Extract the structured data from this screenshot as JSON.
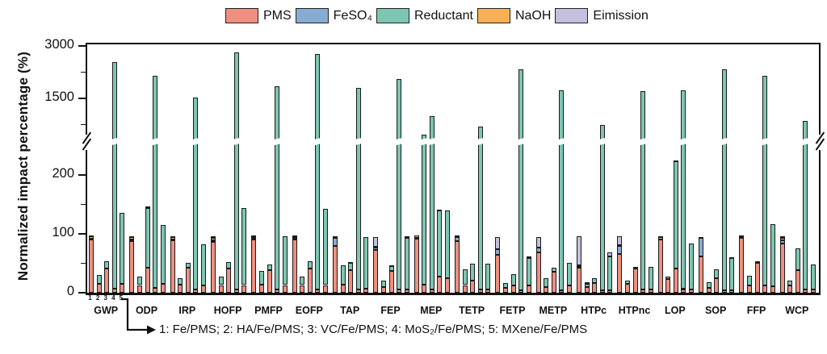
{
  "chart_data": {
    "type": "stacked-bar",
    "title": "",
    "ylabel": "Normalized impact percentage (%)",
    "legend_position": "top",
    "components": [
      "PMS",
      "FeSO₄",
      "Reductant",
      "NaOH",
      "Eimission"
    ],
    "colors": [
      "#EF8F7F",
      "#88ABD2",
      "#7DC6B2",
      "#F7B055",
      "#C3BFDD"
    ],
    "bar_numbering": [
      "1",
      "2",
      "3",
      "4",
      "5"
    ],
    "annotation": "1: Fe/PMS; 2: HA/Fe/PMS; 3: VC/Fe/PMS; 4: MoS₂/Fe/PMS; 5: MXene/Fe/PMS",
    "yticks_major": [
      0,
      100,
      200,
      1500,
      3000
    ],
    "yticks_minor": [
      50,
      150,
      750,
      2250
    ],
    "axis_break_between": [
      250,
      1500
    ],
    "ylim": [
      0,
      3000
    ],
    "grid": false,
    "categories": [
      "GWP",
      "ODP",
      "IRP",
      "HOFP",
      "PMFP",
      "EOFP",
      "TAP",
      "FEP",
      "MEP",
      "TETP",
      "FETP",
      "METP",
      "HTPc",
      "HTPnc",
      "LOP",
      "SOP",
      "FFP",
      "WCP"
    ],
    "series_order_note": "each bar = [PMS, FeSO4, Reductant, NaOH, Eimission] in %",
    "groups": [
      {
        "label": "GWP",
        "bars": [
          [
            90,
            2,
            0,
            4,
            1
          ],
          [
            15,
            0,
            15,
            0,
            0
          ],
          [
            41,
            0,
            13,
            0,
            0
          ],
          [
            7,
            0,
            2543,
            0,
            0
          ],
          [
            15,
            0,
            120,
            0,
            0
          ]
        ]
      },
      {
        "label": "ODP",
        "bars": [
          [
            88,
            2,
            0,
            4,
            2
          ],
          [
            13,
            0,
            14,
            0,
            0
          ],
          [
            42,
            0,
            102,
            3,
            0
          ],
          [
            8,
            0,
            2142,
            0,
            0
          ],
          [
            15,
            0,
            100,
            0,
            0
          ]
        ]
      },
      {
        "label": "IRP",
        "bars": [
          [
            90,
            1,
            0,
            4,
            1
          ],
          [
            14,
            0,
            10,
            0,
            0
          ],
          [
            42,
            0,
            9,
            0,
            0
          ],
          [
            5,
            0,
            1515,
            0,
            0
          ],
          [
            12,
            0,
            70,
            0,
            0
          ]
        ]
      },
      {
        "label": "HOFP",
        "bars": [
          [
            86,
            3,
            0,
            4,
            3
          ],
          [
            13,
            0,
            14,
            0,
            0
          ],
          [
            41,
            0,
            11,
            0,
            0
          ],
          [
            5,
            0,
            2815,
            0,
            0
          ],
          [
            13,
            0,
            131,
            0,
            0
          ]
        ]
      },
      {
        "label": "PMFP",
        "bars": [
          [
            90,
            3,
            0,
            3,
            1
          ],
          [
            14,
            0,
            23,
            0,
            0
          ],
          [
            38,
            0,
            10,
            0,
            0
          ],
          [
            6,
            0,
            1844,
            0,
            0
          ],
          [
            13,
            0,
            83,
            0,
            0
          ]
        ]
      },
      {
        "label": "EOFP",
        "bars": [
          [
            90,
            3,
            0,
            3,
            1
          ],
          [
            13,
            0,
            14,
            0,
            0
          ],
          [
            41,
            0,
            12,
            0,
            0
          ],
          [
            5,
            0,
            2765,
            0,
            0
          ],
          [
            13,
            0,
            130,
            0,
            0
          ]
        ]
      },
      {
        "label": "TAP",
        "bars": [
          [
            79,
            14,
            0,
            3,
            0
          ],
          [
            14,
            0,
            33,
            0,
            0
          ],
          [
            39,
            0,
            12,
            0,
            1
          ],
          [
            5,
            0,
            1805,
            0,
            0
          ],
          [
            7,
            0,
            88,
            0,
            0
          ]
        ]
      },
      {
        "label": "FEP",
        "bars": [
          [
            73,
            3,
            0,
            2,
            17
          ],
          [
            9,
            0,
            11,
            0,
            0
          ],
          [
            37,
            0,
            8,
            0,
            1
          ],
          [
            5,
            0,
            2045,
            0,
            0
          ],
          [
            6,
            0,
            87,
            0,
            3
          ]
        ]
      },
      {
        "label": "MEP",
        "bars": [
          [
            92,
            1,
            0,
            4,
            0
          ],
          [
            14,
            0,
            446,
            0,
            0
          ],
          [
            6,
            0,
            994,
            0,
            0
          ],
          [
            28,
            0,
            112,
            0,
            1
          ],
          [
            24,
            0,
            115,
            0,
            0
          ]
        ]
      },
      {
        "label": "TETP",
        "bars": [
          [
            88,
            7,
            0,
            1,
            1
          ],
          [
            13,
            0,
            27,
            0,
            0
          ],
          [
            20,
            0,
            29,
            0,
            0
          ],
          [
            5,
            0,
            695,
            0,
            0
          ],
          [
            5,
            0,
            44,
            0,
            0
          ]
        ]
      },
      {
        "label": "FETP",
        "bars": [
          [
            65,
            9,
            0,
            0,
            21
          ],
          [
            8,
            0,
            9,
            0,
            0
          ],
          [
            12,
            0,
            20,
            0,
            0
          ],
          [
            4,
            0,
            2326,
            0,
            0
          ],
          [
            12,
            0,
            47,
            0,
            2
          ]
        ]
      },
      {
        "label": "METP",
        "bars": [
          [
            68,
            9,
            0,
            0,
            18
          ],
          [
            10,
            0,
            15,
            0,
            0
          ],
          [
            35,
            0,
            8,
            0,
            0
          ],
          [
            4,
            0,
            1716,
            0,
            0
          ],
          [
            12,
            0,
            39,
            0,
            0
          ]
        ]
      },
      {
        "label": "HTPc",
        "bars": [
          [
            42,
            2,
            2,
            0,
            50
          ],
          [
            10,
            5,
            3,
            0,
            0
          ],
          [
            17,
            0,
            7,
            0,
            0
          ],
          [
            4,
            0,
            736,
            0,
            0
          ],
          [
            4,
            0,
            57,
            0,
            7
          ]
        ]
      },
      {
        "label": "HTPnc",
        "bars": [
          [
            66,
            13,
            2,
            0,
            15
          ],
          [
            15,
            0,
            6,
            0,
            0
          ],
          [
            41,
            0,
            3,
            0,
            0
          ],
          [
            5,
            0,
            1705,
            0,
            0
          ],
          [
            6,
            0,
            38,
            0,
            0
          ]
        ]
      },
      {
        "label": "LOP",
        "bars": [
          [
            90,
            0,
            0,
            4,
            2
          ],
          [
            23,
            0,
            4,
            0,
            0
          ],
          [
            41,
            0,
            182,
            0,
            2
          ],
          [
            5,
            2,
            1723,
            0,
            0
          ],
          [
            6,
            0,
            78,
            0,
            0
          ]
        ]
      },
      {
        "label": "SOP",
        "bars": [
          [
            61,
            33,
            0,
            0,
            1
          ],
          [
            8,
            0,
            10,
            0,
            0
          ],
          [
            25,
            0,
            15,
            0,
            0
          ],
          [
            4,
            0,
            2316,
            0,
            0
          ],
          [
            4,
            0,
            55,
            0,
            1
          ]
        ]
      },
      {
        "label": "FFP",
        "bars": [
          [
            93,
            1,
            0,
            3,
            0
          ],
          [
            13,
            0,
            16,
            0,
            0
          ],
          [
            50,
            0,
            2,
            1,
            0
          ],
          [
            13,
            0,
            2127,
            0,
            0
          ],
          [
            11,
            0,
            105,
            0,
            0
          ]
        ]
      },
      {
        "label": "WCP",
        "bars": [
          [
            84,
            5,
            0,
            4,
            3
          ],
          [
            13,
            0,
            8,
            0,
            0
          ],
          [
            38,
            0,
            37,
            0,
            0
          ],
          [
            6,
            0,
            844,
            0,
            0
          ],
          [
            5,
            0,
            43,
            0,
            0
          ]
        ]
      }
    ]
  }
}
